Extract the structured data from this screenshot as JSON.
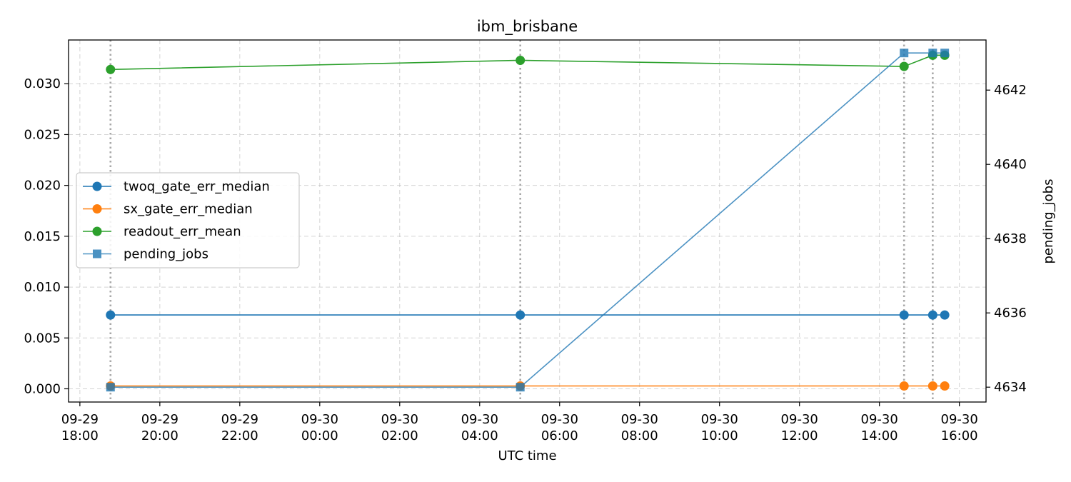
{
  "chart_data": {
    "type": "line",
    "title": "ibm_brisbane",
    "xlabel": "UTC time",
    "ylabel_left": "",
    "ylabel_right": "pending_jobs",
    "x_ticks": [
      {
        "value": "2023-09-29T18:00",
        "line1": "09-29",
        "line2": "18:00"
      },
      {
        "value": "2023-09-29T20:00",
        "line1": "09-29",
        "line2": "20:00"
      },
      {
        "value": "2023-09-29T22:00",
        "line1": "09-29",
        "line2": "22:00"
      },
      {
        "value": "2023-09-30T00:00",
        "line1": "09-30",
        "line2": "00:00"
      },
      {
        "value": "2023-09-30T02:00",
        "line1": "09-30",
        "line2": "02:00"
      },
      {
        "value": "2023-09-30T04:00",
        "line1": "09-30",
        "line2": "04:00"
      },
      {
        "value": "2023-09-30T06:00",
        "line1": "09-30",
        "line2": "06:00"
      },
      {
        "value": "2023-09-30T08:00",
        "line1": "09-30",
        "line2": "08:00"
      },
      {
        "value": "2023-09-30T10:00",
        "line1": "09-30",
        "line2": "10:00"
      },
      {
        "value": "2023-09-30T12:00",
        "line1": "09-30",
        "line2": "12:00"
      },
      {
        "value": "2023-09-30T14:00",
        "line1": "09-30",
        "line2": "14:00"
      },
      {
        "value": "2023-09-30T16:00",
        "line1": "09-30",
        "line2": "16:00"
      }
    ],
    "xlim": [
      "2023-09-29T17:43",
      "2023-09-30T16:40"
    ],
    "x": [
      "2023-09-29T18:46",
      "2023-09-30T05:01",
      "2023-09-30T14:37",
      "2023-09-30T15:20",
      "2023-09-30T15:38"
    ],
    "vlines": [
      "2023-09-29T18:46",
      "2023-09-30T05:01",
      "2023-09-30T14:37",
      "2023-09-30T15:20"
    ],
    "ylim_left": [
      -0.0013,
      0.0343
    ],
    "y_ticks_left": [
      "0.000",
      "0.005",
      "0.010",
      "0.015",
      "0.020",
      "0.025",
      "0.030"
    ],
    "ylim_right": [
      4633.6,
      4643.35
    ],
    "y_ticks_right": [
      "4634",
      "4636",
      "4638",
      "4640",
      "4642"
    ],
    "grid": true,
    "legend_position": "center-left",
    "series": [
      {
        "name": "twoq_gate_err_median",
        "axis": "left",
        "marker": "circle",
        "color": "#1f77b4",
        "values": [
          0.00726,
          0.00726,
          0.00726,
          0.00726,
          0.00726
        ]
      },
      {
        "name": "sx_gate_err_median",
        "axis": "left",
        "marker": "circle",
        "color": "#ff7f0e",
        "values": [
          0.00028,
          0.00028,
          0.00028,
          0.00028,
          0.00028
        ]
      },
      {
        "name": "readout_err_mean",
        "axis": "left",
        "marker": "circle",
        "color": "#2ca02c",
        "values": [
          0.0314,
          0.0323,
          0.0317,
          0.0328,
          0.0328
        ]
      },
      {
        "name": "pending_jobs",
        "axis": "right",
        "marker": "square",
        "color": "#1f77b4",
        "values": [
          4634,
          4634,
          4643,
          4643,
          4643
        ]
      }
    ]
  }
}
